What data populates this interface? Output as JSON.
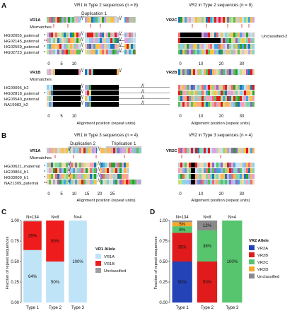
{
  "figure": {
    "panelA": {
      "letter": "A",
      "vr1_title": "VR1 in Type 2 sequences (n = 8)",
      "vr2_title": "VR2 in Type 2 sequences (n = 8)",
      "duplication_label": "Duplication 1",
      "vr1a_label": "VR1A",
      "vr1b_label": "VR1B",
      "vr2c_label": "VR2C",
      "vr2b_label": "VR2B",
      "mismatches_label": "Mismatches",
      "unclassified_label": "Unclassified-2",
      "xaxis_label": "Alignment position (repeat units)",
      "top_samples": [
        {
          "name": "HG02055_paternal",
          "mark": "*"
        },
        {
          "name": "HG02145_paternal",
          "mark": "**"
        },
        {
          "name": "HG02559_paternal",
          "mark": "*"
        },
        {
          "name": "HG02723_paternal",
          "mark": "*"
        }
      ],
      "bottom_samples": [
        {
          "name": "HG00096_h2",
          "mark": ""
        },
        {
          "name": "HG02818_paternal",
          "mark": "*"
        },
        {
          "name": "HG03540_paternal",
          "mark": ""
        },
        {
          "name": "NA19983_h2",
          "mark": ""
        }
      ],
      "vr1_ticks": [
        "0",
        "5",
        "10"
      ],
      "vr2_ticks": [
        "0",
        "10",
        "20",
        "30"
      ]
    },
    "panelB": {
      "letter": "B",
      "vr1_title": "VR1 in Type 3 sequences (n = 4)",
      "vr2_title": "VR2 in Type 3 sequences (n = 4)",
      "duplication_label": "Duplication 2",
      "triplication_label": "Triplication 1",
      "vr1a_label": "VR1A",
      "vr2c_label": "VR2C",
      "mismatches_label": "Mismatches",
      "xaxis_label": "Alignment position (repeat units)",
      "samples": [
        {
          "name": "HG00621_maternal",
          "mark": "*"
        },
        {
          "name": "HG00864_h1",
          "mark": "*"
        },
        {
          "name": "HG03009_h1",
          "mark": "*"
        },
        {
          "name": "NA21309_paternal",
          "mark": "**"
        }
      ],
      "vr1_ticks": [
        "0",
        "5",
        "10",
        "15",
        "20",
        "25"
      ],
      "vr2_ticks": [
        "0",
        "10",
        "20",
        "30"
      ]
    },
    "panelC": {
      "letter": "C",
      "ylabel": "Fraction of repeat sequences",
      "legend_title": "VR1 Allele",
      "legend_items": [
        "VR1A",
        "VR1B",
        "Unclassified"
      ],
      "colors": {
        "VR1A": "#bfe3f7",
        "VR1B": "#ee1c1c",
        "Unclassified": "#9e9e9e"
      }
    },
    "panelD": {
      "letter": "D",
      "ylabel": "Fraction of repeat sequences",
      "legend_title": "VR2 Allele",
      "legend_items": [
        "VR2A",
        "VR2B",
        "VR2C",
        "VR2D",
        "Unclassified"
      ],
      "colors": {
        "VR2A": "#2343b6",
        "VR2B": "#e11b1b",
        "VR2C": "#57c46e",
        "VR2D": "#f6a72a",
        "Unclassified": "#8a8a8a"
      }
    }
  },
  "chart_data": [
    {
      "type": "bar",
      "title": "",
      "ylabel": "Fraction of repeat sequences",
      "xlabel": "",
      "categories": [
        "Type 1",
        "Type 2",
        "Type 3"
      ],
      "n_labels": [
        "N=134",
        "N=8",
        "N=4"
      ],
      "stacked": true,
      "ylim": [
        0,
        1
      ],
      "yticks": [
        "0.00",
        "0.25",
        "0.50",
        "0.75",
        "1.00"
      ],
      "series": [
        {
          "name": "VR1A",
          "values": [
            0.64,
            0.5,
            1.0
          ],
          "labels": [
            "64%",
            "50%",
            "100%"
          ]
        },
        {
          "name": "VR1B",
          "values": [
            0.35,
            0.5,
            0.0
          ],
          "labels": [
            "35%",
            "50%",
            ""
          ]
        },
        {
          "name": "Unclassified",
          "values": [
            0.01,
            0.0,
            0.0
          ],
          "labels": [
            "",
            "",
            ""
          ]
        }
      ]
    },
    {
      "type": "bar",
      "title": "",
      "ylabel": "Fraction of repeat sequences",
      "xlabel": "",
      "categories": [
        "Type 1",
        "Type 2",
        "Type 3"
      ],
      "n_labels": [
        "N=134",
        "N=8",
        "N=4"
      ],
      "stacked": true,
      "ylim": [
        0,
        1
      ],
      "yticks": [
        "0.00",
        "0.25",
        "0.50",
        "0.75",
        "1.00"
      ],
      "series": [
        {
          "name": "VR2A",
          "values": [
            0.5,
            0.0,
            0.0
          ],
          "labels": [
            "50%",
            "",
            ""
          ]
        },
        {
          "name": "VR2B",
          "values": [
            0.35,
            0.5,
            0.0
          ],
          "labels": [
            "35%",
            "50%",
            ""
          ]
        },
        {
          "name": "VR2C",
          "values": [
            0.08,
            0.38,
            1.0
          ],
          "labels": [
            "8%",
            "38%",
            "100%"
          ]
        },
        {
          "name": "VR2D",
          "values": [
            0.05,
            0.0,
            0.0
          ],
          "labels": [
            "5%",
            "",
            ""
          ]
        },
        {
          "name": "Unclassified",
          "values": [
            0.02,
            0.12,
            0.0
          ],
          "labels": [
            "",
            "12%",
            ""
          ]
        }
      ]
    }
  ]
}
